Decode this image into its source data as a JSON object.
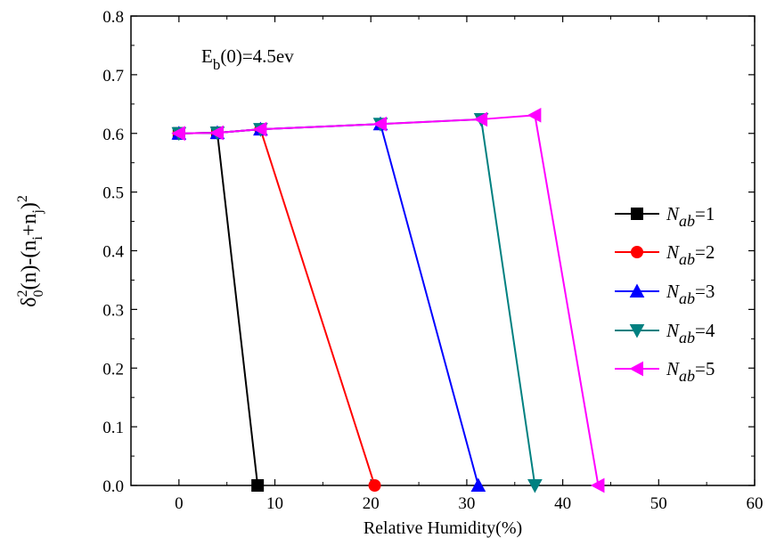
{
  "chart_data": {
    "type": "line",
    "title": "",
    "annotation": {
      "main": "E",
      "sub": "b",
      "rest": "(0)=4.5ev"
    },
    "xlabel": "Relative Humidity(%)",
    "ylabel": {
      "delta": "δ",
      "sup": "2",
      "sub": "0",
      "mid": "(n)-(n",
      "i": "i",
      "plus": "+n",
      "j": "j",
      "close": ")",
      "sup2": "2"
    },
    "xlim": [
      -5,
      60
    ],
    "ylim": [
      0,
      0.8
    ],
    "xticks": [
      0,
      10,
      20,
      30,
      40,
      50,
      60
    ],
    "yticks": [
      0.0,
      0.1,
      0.2,
      0.3,
      0.4,
      0.5,
      0.6,
      0.7,
      0.8
    ],
    "grid": false,
    "legend_position": "right",
    "series": [
      {
        "name": "N_ab=1",
        "legend": {
          "sym": "N",
          "sub": "ab",
          "rest": "=1"
        },
        "color": "#000000",
        "marker": "square",
        "x": [
          0,
          4,
          8.2
        ],
        "y": [
          0.6,
          0.601,
          0.0
        ]
      },
      {
        "name": "N_ab=2",
        "legend": {
          "sym": "N",
          "sub": "ab",
          "rest": "=2"
        },
        "color": "#ff0000",
        "marker": "circle",
        "x": [
          0,
          4,
          8.5,
          20.4
        ],
        "y": [
          0.6,
          0.601,
          0.607,
          0.0
        ]
      },
      {
        "name": "N_ab=3",
        "legend": {
          "sym": "N",
          "sub": "ab",
          "rest": "=3"
        },
        "color": "#0000ff",
        "marker": "triangle-up",
        "x": [
          0,
          4,
          8.5,
          21,
          31.2
        ],
        "y": [
          0.6,
          0.601,
          0.607,
          0.616,
          0.0
        ]
      },
      {
        "name": "N_ab=4",
        "legend": {
          "sym": "N",
          "sub": "ab",
          "rest": "=4"
        },
        "color": "#008080",
        "marker": "triangle-down",
        "x": [
          0,
          4,
          8.5,
          21,
          31.5,
          37.1
        ],
        "y": [
          0.6,
          0.601,
          0.607,
          0.616,
          0.624,
          0.0
        ]
      },
      {
        "name": "N_ab=5",
        "legend": {
          "sym": "N",
          "sub": "ab",
          "rest": "=5"
        },
        "color": "#ff00ff",
        "marker": "triangle-left",
        "x": [
          0,
          4,
          8.5,
          21,
          31.5,
          37.1,
          43.7
        ],
        "y": [
          0.6,
          0.601,
          0.607,
          0.616,
          0.624,
          0.631,
          0.0
        ]
      }
    ]
  }
}
